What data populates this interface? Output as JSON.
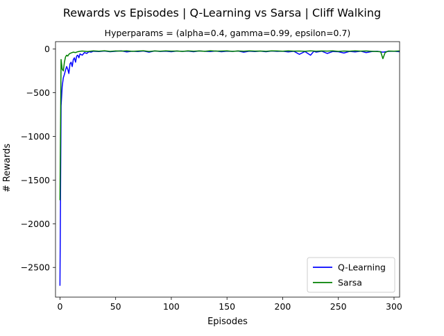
{
  "chart_data": {
    "type": "line",
    "title": "Rewards vs Episodes | Q-Learning vs Sarsa | Cliff Walking",
    "subtitle": "Hyperparams = (alpha=0.4, gamma=0.99, epsilon=0.7)",
    "xlabel": "Episodes",
    "ylabel": "# Rewards",
    "xlim": [
      -4,
      305
    ],
    "ylim": [
      -2840,
      85
    ],
    "xticks": [
      {
        "value": 0,
        "label": "0"
      },
      {
        "value": 50,
        "label": "50"
      },
      {
        "value": 100,
        "label": "100"
      },
      {
        "value": 150,
        "label": "150"
      },
      {
        "value": 200,
        "label": "200"
      },
      {
        "value": 250,
        "label": "250"
      },
      {
        "value": 300,
        "label": "300"
      }
    ],
    "yticks": [
      {
        "value": 0,
        "label": "0"
      },
      {
        "value": -500,
        "label": "−500"
      },
      {
        "value": -1000,
        "label": "−1000"
      },
      {
        "value": -1500,
        "label": "−1500"
      },
      {
        "value": -2000,
        "label": "−2000"
      },
      {
        "value": -2500,
        "label": "−2500"
      }
    ],
    "grid": false,
    "legend_position": "bottom-right",
    "series": [
      {
        "name": "Q-Learning",
        "color": "#0000ff",
        "x": [
          0,
          1,
          2,
          3,
          4,
          5,
          6,
          7,
          8,
          9,
          10,
          11,
          12,
          13,
          14,
          15,
          16,
          17,
          18,
          20,
          22,
          24,
          26,
          28,
          30,
          35,
          40,
          45,
          50,
          55,
          60,
          65,
          70,
          75,
          80,
          85,
          90,
          95,
          100,
          105,
          110,
          115,
          120,
          125,
          130,
          135,
          140,
          145,
          150,
          155,
          160,
          165,
          170,
          175,
          180,
          185,
          190,
          195,
          200,
          205,
          210,
          215,
          220,
          225,
          228,
          230,
          235,
          240,
          245,
          250,
          255,
          260,
          265,
          270,
          275,
          280,
          285,
          290,
          295,
          300,
          305
        ],
        "values": [
          -2710,
          -650,
          -430,
          -330,
          -290,
          -240,
          -200,
          -230,
          -280,
          -170,
          -150,
          -200,
          -120,
          -100,
          -150,
          -80,
          -70,
          -100,
          -55,
          -70,
          -40,
          -50,
          -30,
          -35,
          -25,
          -28,
          -22,
          -30,
          -25,
          -20,
          -32,
          -24,
          -28,
          -22,
          -35,
          -21,
          -27,
          -24,
          -30,
          -22,
          -26,
          -23,
          -30,
          -21,
          -25,
          -28,
          -22,
          -30,
          -24,
          -26,
          -22,
          -35,
          -24,
          -28,
          -23,
          -30,
          -22,
          -26,
          -24,
          -32,
          -25,
          -60,
          -28,
          -70,
          -25,
          -35,
          -24,
          -50,
          -28,
          -30,
          -45,
          -26,
          -32,
          -24,
          -40,
          -28,
          -25,
          -35,
          -26,
          -24,
          -30
        ]
      },
      {
        "name": "Sarsa",
        "color": "#008000",
        "x": [
          0,
          1,
          2,
          3,
          4,
          5,
          6,
          7,
          8,
          9,
          10,
          12,
          14,
          16,
          18,
          20,
          25,
          30,
          35,
          40,
          45,
          50,
          55,
          60,
          65,
          70,
          75,
          80,
          85,
          90,
          95,
          100,
          105,
          110,
          115,
          120,
          125,
          130,
          135,
          140,
          145,
          150,
          155,
          160,
          165,
          170,
          175,
          180,
          185,
          190,
          195,
          200,
          205,
          210,
          215,
          220,
          225,
          230,
          235,
          240,
          245,
          250,
          255,
          260,
          265,
          270,
          275,
          280,
          285,
          288,
          290,
          292,
          295,
          300,
          305
        ],
        "values": [
          -1730,
          -120,
          -230,
          -250,
          -150,
          -90,
          -70,
          -80,
          -60,
          -50,
          -45,
          -35,
          -40,
          -30,
          -25,
          -22,
          -28,
          -20,
          -24,
          -19,
          -26,
          -21,
          -23,
          -20,
          -25,
          -22,
          -19,
          -27,
          -21,
          -24,
          -20,
          -23,
          -22,
          -26,
          -20,
          -24,
          -21,
          -25,
          -19,
          -23,
          -22,
          -20,
          -26,
          -21,
          -24,
          -20,
          -23,
          -22,
          -25,
          -20,
          -21,
          -24,
          -20,
          -23,
          -22,
          -25,
          -20,
          -24,
          -21,
          -23,
          -20,
          -26,
          -22,
          -24,
          -20,
          -23,
          -21,
          -25,
          -28,
          -30,
          -110,
          -40,
          -22,
          -24,
          -21
        ]
      }
    ]
  }
}
